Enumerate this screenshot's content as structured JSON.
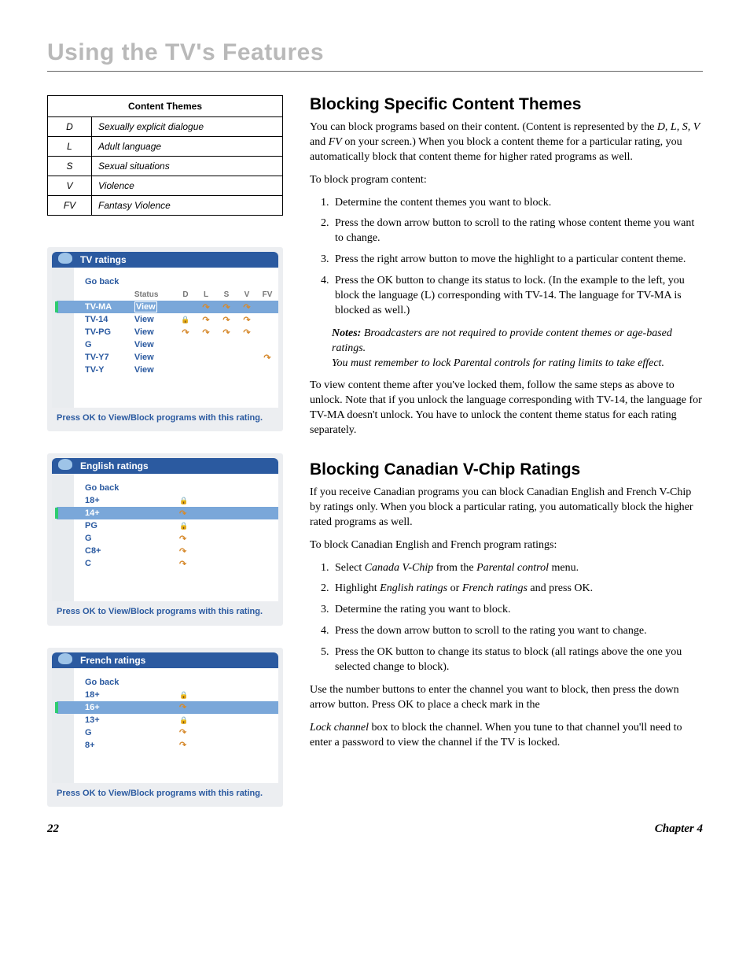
{
  "header": "Using the TV's Features",
  "contentThemes": {
    "title": "Content Themes",
    "rows": [
      {
        "code": "D",
        "desc": "Sexually explicit dialogue"
      },
      {
        "code": "L",
        "desc": "Adult language"
      },
      {
        "code": "S",
        "desc": "Sexual situations"
      },
      {
        "code": "V",
        "desc": "Violence"
      },
      {
        "code": "FV",
        "desc": "Fantasy Violence"
      }
    ]
  },
  "tvRatings": {
    "title": "TV ratings",
    "goBack": "Go back",
    "headers": {
      "status": "Status",
      "d": "D",
      "l": "L",
      "s": "S",
      "v": "V",
      "fv": "FV"
    },
    "rows": [
      {
        "label": "TV-MA",
        "status": "View",
        "highlight": true,
        "icons": [
          "",
          "open",
          "open",
          "open",
          ""
        ]
      },
      {
        "label": "TV-14",
        "status": "View",
        "highlight": false,
        "icons": [
          "lock",
          "open",
          "open",
          "open",
          ""
        ]
      },
      {
        "label": "TV-PG",
        "status": "View",
        "highlight": false,
        "icons": [
          "open",
          "open",
          "open",
          "open",
          ""
        ]
      },
      {
        "label": "G",
        "status": "View",
        "highlight": false,
        "icons": [
          "",
          "",
          "",
          "",
          ""
        ]
      },
      {
        "label": "TV-Y7",
        "status": "View",
        "highlight": false,
        "icons": [
          "",
          "",
          "",
          "",
          "open"
        ]
      },
      {
        "label": "TV-Y",
        "status": "View",
        "highlight": false,
        "icons": [
          "",
          "",
          "",
          "",
          ""
        ]
      }
    ],
    "footer": "Press OK to View/Block programs with this rating."
  },
  "englishRatings": {
    "title": "English ratings",
    "goBack": "Go back",
    "rows": [
      {
        "label": "18+",
        "icon": "lock",
        "highlight": false
      },
      {
        "label": "14+",
        "icon": "open",
        "highlight": true
      },
      {
        "label": "PG",
        "icon": "lock",
        "highlight": false
      },
      {
        "label": "G",
        "icon": "open",
        "highlight": false
      },
      {
        "label": "C8+",
        "icon": "open",
        "highlight": false
      },
      {
        "label": "C",
        "icon": "open",
        "highlight": false
      }
    ],
    "footer": "Press OK to View/Block programs with this rating."
  },
  "frenchRatings": {
    "title": "French ratings",
    "goBack": "Go back",
    "rows": [
      {
        "label": "18+",
        "icon": "lock",
        "highlight": false
      },
      {
        "label": "16+",
        "icon": "open",
        "highlight": true
      },
      {
        "label": "13+",
        "icon": "lock",
        "highlight": false
      },
      {
        "label": "G",
        "icon": "open",
        "highlight": false
      },
      {
        "label": "8+",
        "icon": "open",
        "highlight": false
      }
    ],
    "footer": "Press OK to View/Block programs with this rating."
  },
  "sectionA": {
    "title": "Blocking Specific Content Themes",
    "p1a": "You can block programs based on their content. (Content is represented by the ",
    "p1b": "D, L, S, V",
    "p1c": " and ",
    "p1d": "FV",
    "p1e": " on your screen.) When you block a content theme for a particular rating, you automatically block that content theme for higher rated programs as well.",
    "p2": "To block program content:",
    "li1": "Determine the content themes you want to block.",
    "li2": "Press the down arrow button to scroll to the rating whose content theme you want to change.",
    "li3": "Press the right arrow button to move the highlight to a particular content theme.",
    "li4": "Press the OK button to change its status to lock. (In the example to the left, you block the language (L) corresponding with TV-14. The language for TV-MA is blocked as well.)",
    "notesLabel": "Notes:",
    "note1": " Broadcasters are not required to provide content themes or age-based ratings.",
    "note2": "You must remember to lock Parental controls for rating limits to take effect.",
    "p3": "To view content theme after you've locked them, follow the same steps as above to unlock. Note that if you unlock the language corresponding with TV-14, the language for TV-MA doesn't unlock. You have to unlock the content theme status for each rating separately."
  },
  "sectionB": {
    "title": "Blocking Canadian V-Chip Ratings",
    "p1": "If you receive Canadian programs you can block Canadian English and French V-Chip by ratings only. When you block a particular rating, you automatically block the higher rated programs as well.",
    "p2": "To block Canadian English and French program ratings:",
    "li1a": "Select ",
    "li1b": "Canada V-Chip",
    "li1c": " from the ",
    "li1d": "Parental control",
    "li1e": " menu.",
    "li2a": "Highlight ",
    "li2b": "English ratings",
    "li2c": " or ",
    "li2d": "French ratings",
    "li2e": " and press OK.",
    "li3": "Determine the rating you want to block.",
    "li4": "Press the down arrow button to scroll to the rating you want to change.",
    "li5": "Press the OK button to change its status to block (all ratings above the one you selected change to block).",
    "p3": "Use the number buttons to enter the channel you want to block, then press the down arrow button. Press OK to place a check mark in the",
    "p4a": "Lock channel",
    "p4b": " box to block the channel. When you tune to that channel you'll need to enter a password to view the channel if the TV is locked."
  },
  "footer": {
    "page": "22",
    "chapter": "Chapter 4"
  }
}
